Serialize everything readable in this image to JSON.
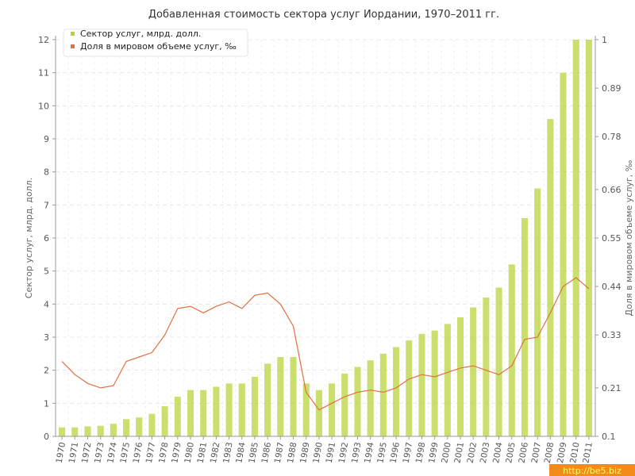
{
  "chart_data": {
    "type": "bar",
    "title": "Добавленная стоимость сектора услуг Иордании, 1970–2011 гг.",
    "ylabel_left": "Сектор услуг, млрд. долл.",
    "ylabel_right": "Доля в мировом объеме услуг, ‰",
    "ylim_left": [
      0,
      12
    ],
    "ylim_right": [
      0.1,
      1
    ],
    "yticks_left": [
      "0",
      "1",
      "2",
      "3",
      "4",
      "5",
      "6",
      "7",
      "8",
      "9",
      "10",
      "11",
      "12"
    ],
    "yticks_right": [
      "0.1",
      "0.21",
      "0.33",
      "0.44",
      "0.55",
      "0.66",
      "0.78",
      "0.89",
      "1"
    ],
    "grid": true,
    "legend_position": "top-left",
    "categories": [
      "1970",
      "1971",
      "1972",
      "1973",
      "1974",
      "1975",
      "1976",
      "1977",
      "1978",
      "1979",
      "1980",
      "1981",
      "1982",
      "1983",
      "1984",
      "1985",
      "1986",
      "1987",
      "1988",
      "1989",
      "1990",
      "1991",
      "1992",
      "1993",
      "1994",
      "1995",
      "1996",
      "1997",
      "1998",
      "1999",
      "2000",
      "2001",
      "2002",
      "2003",
      "2004",
      "2005",
      "2006",
      "2007",
      "2008",
      "2009",
      "2010",
      "2011"
    ],
    "series": [
      {
        "name": "Сектор услуг, млрд. долл.",
        "type": "bar",
        "axis": "left",
        "color": "#b5d334",
        "values": [
          0.27,
          0.27,
          0.3,
          0.32,
          0.38,
          0.52,
          0.57,
          0.68,
          0.91,
          1.2,
          1.4,
          1.4,
          1.5,
          1.6,
          1.6,
          1.8,
          2.2,
          2.4,
          2.4,
          1.6,
          1.4,
          1.6,
          1.9,
          2.1,
          2.3,
          2.5,
          2.7,
          2.9,
          3.1,
          3.2,
          3.4,
          3.6,
          3.9,
          4.2,
          4.5,
          5.2,
          6.6,
          7.5,
          9.6,
          11.0,
          12.0,
          12.0
        ]
      },
      {
        "name": "Доля в мировом объеме услуг, ‰",
        "type": "line",
        "axis": "right",
        "color": "#e07040",
        "values": [
          0.27,
          0.24,
          0.22,
          0.21,
          0.215,
          0.27,
          0.28,
          0.29,
          0.33,
          0.39,
          0.395,
          0.38,
          0.395,
          0.405,
          0.39,
          0.42,
          0.425,
          0.4,
          0.35,
          0.2,
          0.16,
          0.175,
          0.19,
          0.2,
          0.205,
          0.2,
          0.21,
          0.23,
          0.24,
          0.235,
          0.245,
          0.255,
          0.26,
          0.25,
          0.24,
          0.26,
          0.32,
          0.325,
          0.38,
          0.44,
          0.46,
          0.435
        ]
      }
    ]
  },
  "watermark": "http://be5.biz"
}
